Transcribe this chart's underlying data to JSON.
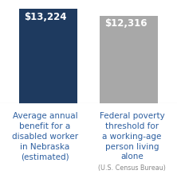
{
  "categories_left": "Average annual\nbenefit for a\na disabled worker\nin Nebraska\n(estimated)",
  "categories_right_main": "Federal poverty\nthreshold for\na working-age\nperson living\nalone",
  "categories_right_sub": "(U.S. Census Bureau)",
  "values": [
    13224,
    12316
  ],
  "labels": [
    "$13,224",
    "$12,316"
  ],
  "bar_colors": [
    "#1e3a5f",
    "#a8a8a8"
  ],
  "label_color": "#ffffff",
  "background_color": "#ffffff",
  "text_color": "#2d5fa0",
  "sub_color": "#888888",
  "ylim": [
    0,
    14500
  ],
  "bar_width": 0.72,
  "label_fontsize": 8.5,
  "tick_fontsize": 7.5,
  "sub_fontsize": 5.8
}
